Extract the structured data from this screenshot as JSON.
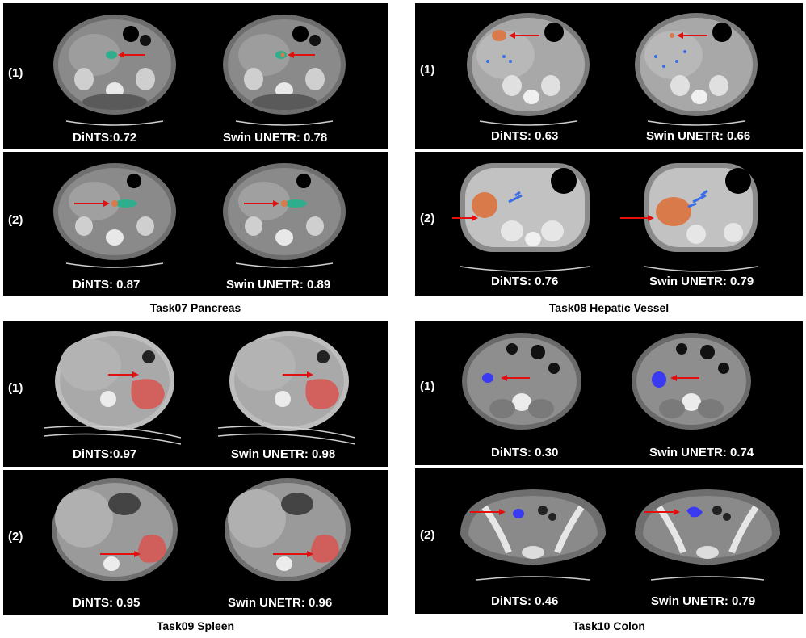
{
  "tasks": [
    {
      "caption": "Task07 Pancreas",
      "rows": [
        {
          "label": "(1)",
          "left_score": "DiNTS:0.72",
          "right_score": "Swin UNETR: 0.78"
        },
        {
          "label": "(2)",
          "left_score": "DiNTS: 0.87",
          "right_score": "Swin UNETR: 0.89"
        }
      ]
    },
    {
      "caption": "Task08 Hepatic Vessel",
      "rows": [
        {
          "label": "(1)",
          "left_score": "DiNTS: 0.63",
          "right_score": "Swin UNETR: 0.66"
        },
        {
          "label": "(2)",
          "left_score": "DiNTS: 0.76",
          "right_score": "Swin UNETR: 0.79"
        }
      ]
    },
    {
      "caption": "Task09 Spleen",
      "rows": [
        {
          "label": "(1)",
          "left_score": "DiNTS:0.97",
          "right_score": "Swin UNETR: 0.98"
        },
        {
          "label": "(2)",
          "left_score": "DiNTS: 0.95",
          "right_score": "Swin UNETR: 0.96"
        }
      ]
    },
    {
      "caption": "Task10 Colon",
      "rows": [
        {
          "label": "(1)",
          "left_score": "DiNTS: 0.30",
          "right_score": "Swin UNETR: 0.74"
        },
        {
          "label": "(2)",
          "left_score": "DiNTS: 0.46",
          "right_score": "Swin UNETR: 0.79"
        }
      ]
    }
  ],
  "colors": {
    "pancreas": "#2fae8e",
    "tumor": "#d97a4a",
    "vessel": "#3a6ee6",
    "spleen": "#d9544f",
    "colon": "#3a3af0",
    "arrow": "#e01010"
  }
}
